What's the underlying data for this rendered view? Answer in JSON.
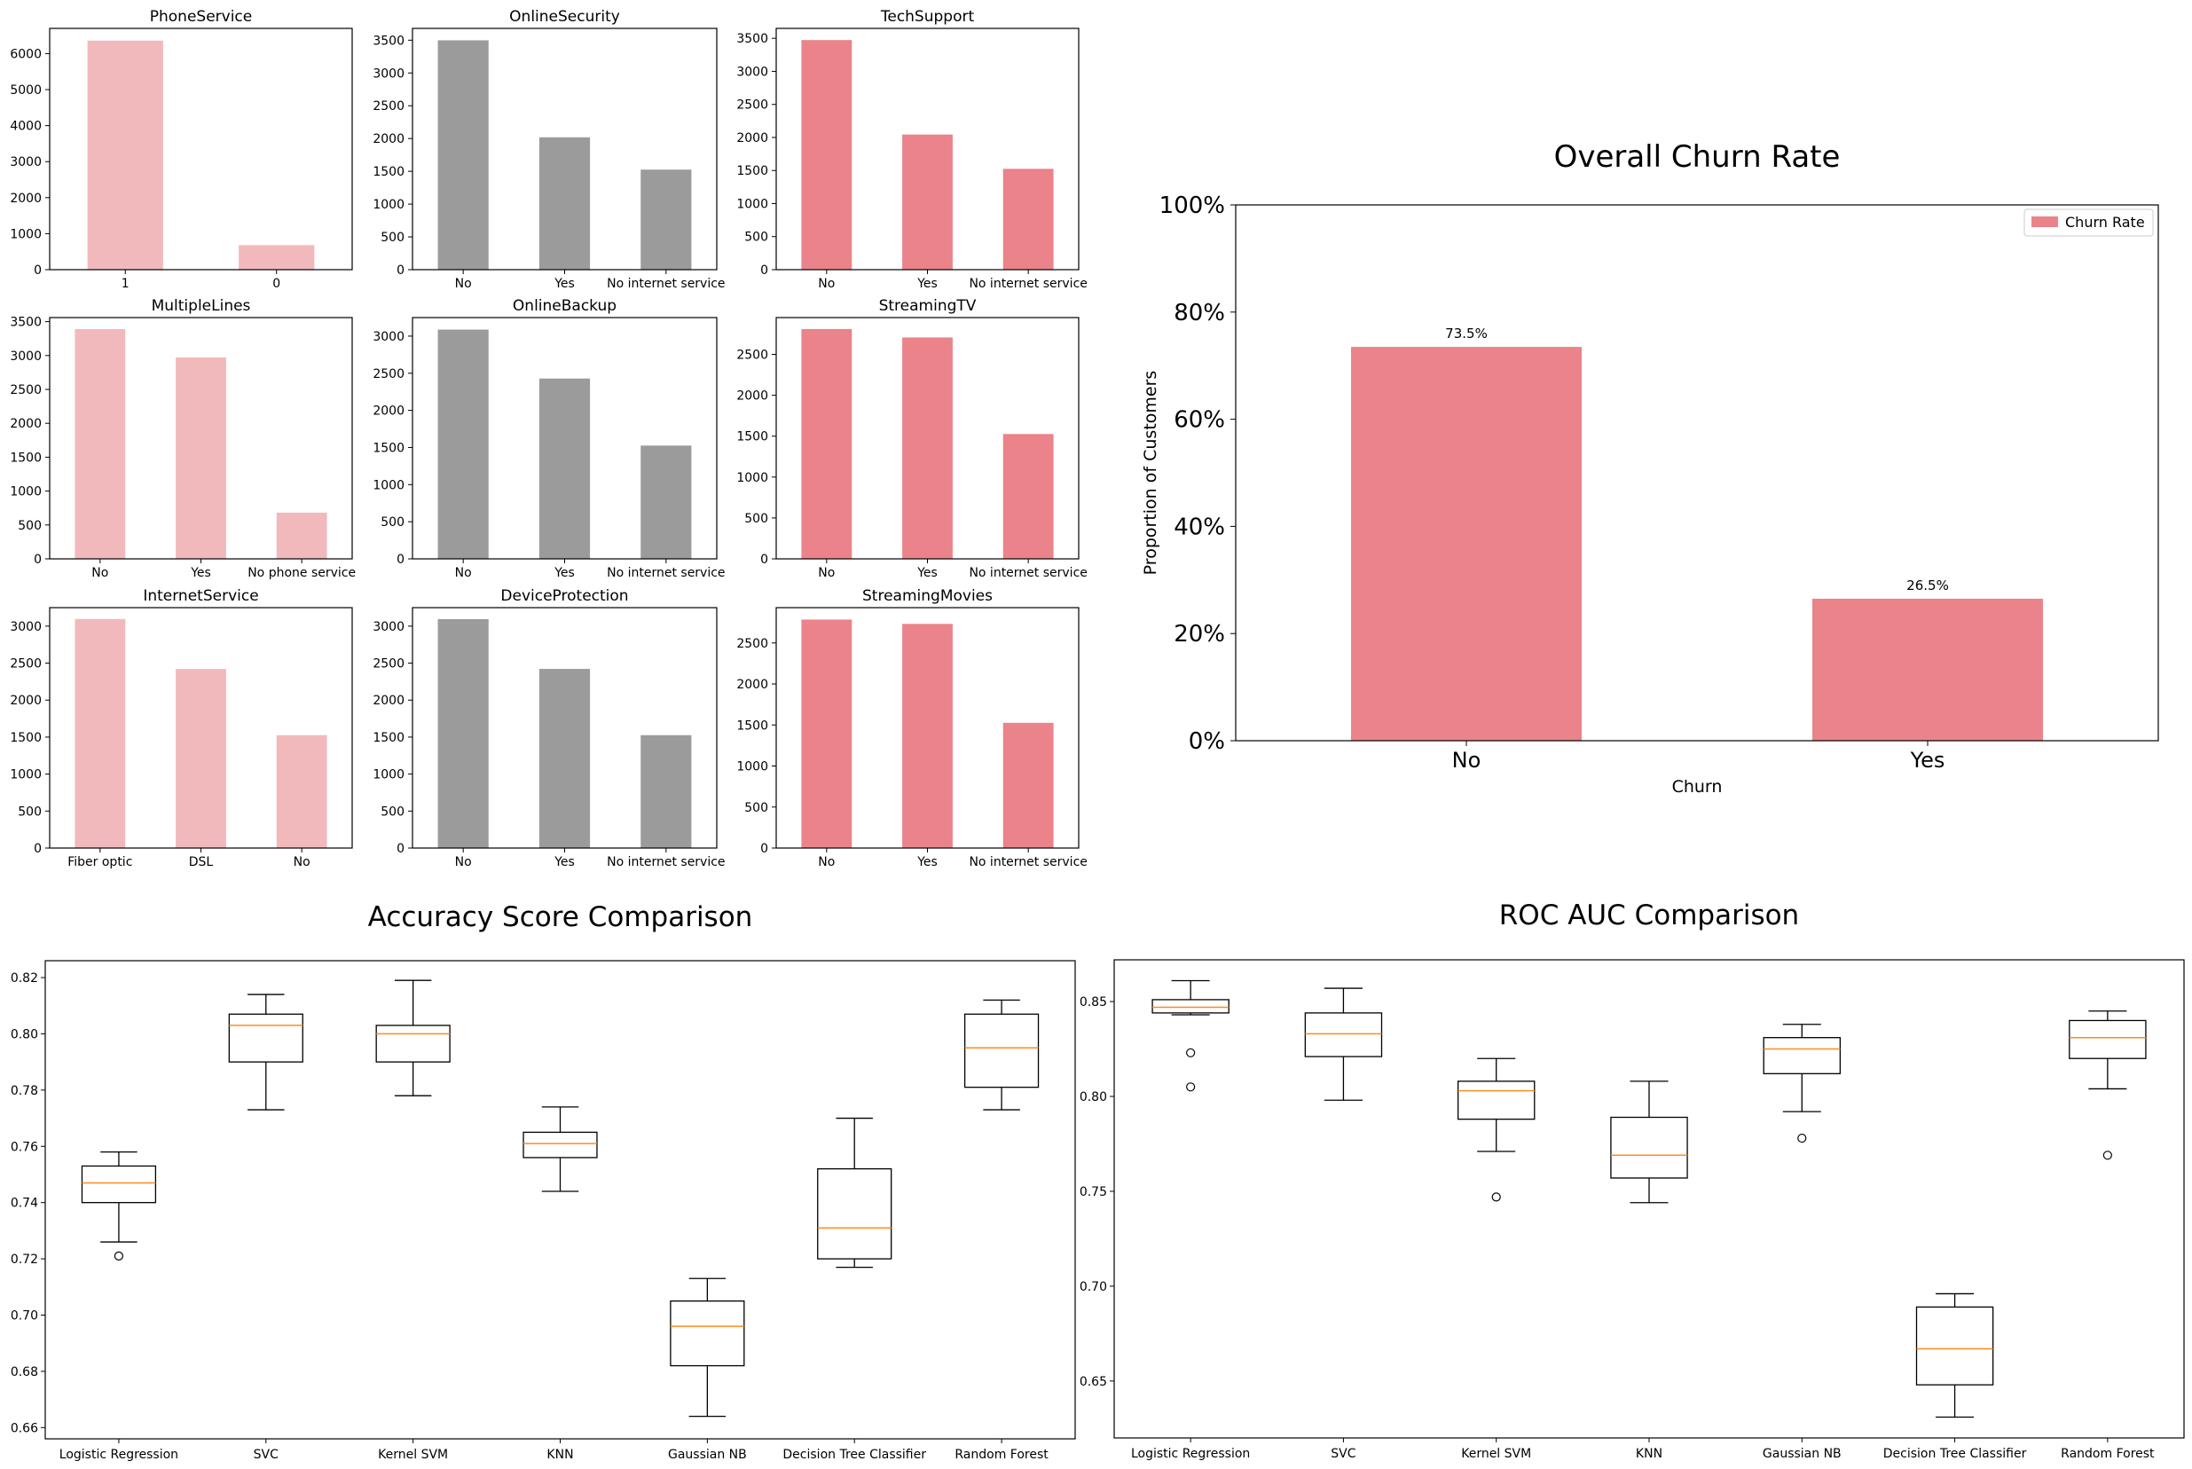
{
  "chart_data": [
    {
      "type": "bar",
      "title": "PhoneService",
      "categories": [
        "1",
        "0"
      ],
      "values": [
        6361,
        682
      ],
      "ylim": [
        0,
        6700
      ],
      "yticks": [
        0,
        1000,
        2000,
        3000,
        4000,
        5000,
        6000
      ],
      "color": "#f2b9bc"
    },
    {
      "type": "bar",
      "title": "OnlineSecurity",
      "categories": [
        "No",
        "Yes",
        "No internet service"
      ],
      "values": [
        3498,
        2019,
        1526
      ],
      "ylim": [
        0,
        3680
      ],
      "yticks": [
        0,
        500,
        1000,
        1500,
        2000,
        2500,
        3000,
        3500
      ],
      "color": "#9b9b9b"
    },
    {
      "type": "bar",
      "title": "TechSupport",
      "categories": [
        "No",
        "Yes",
        "No internet service"
      ],
      "values": [
        3473,
        2044,
        1526
      ],
      "ylim": [
        0,
        3650
      ],
      "yticks": [
        0,
        500,
        1000,
        1500,
        2000,
        2500,
        3000,
        3500
      ],
      "color": "#eb838a"
    },
    {
      "type": "bar",
      "title": "MultipleLines",
      "categories": [
        "No",
        "Yes",
        "No phone service"
      ],
      "values": [
        3390,
        2971,
        682
      ],
      "ylim": [
        0,
        3560
      ],
      "yticks": [
        0,
        500,
        1000,
        1500,
        2000,
        2500,
        3000,
        3500
      ],
      "color": "#f2b9bc"
    },
    {
      "type": "bar",
      "title": "OnlineBackup",
      "categories": [
        "No",
        "Yes",
        "No internet service"
      ],
      "values": [
        3088,
        2429,
        1526
      ],
      "ylim": [
        0,
        3250
      ],
      "yticks": [
        0,
        500,
        1000,
        1500,
        2000,
        2500,
        3000
      ],
      "color": "#9b9b9b"
    },
    {
      "type": "bar",
      "title": "StreamingTV",
      "categories": [
        "No",
        "Yes",
        "No internet service"
      ],
      "values": [
        2810,
        2707,
        1526
      ],
      "ylim": [
        0,
        2950
      ],
      "yticks": [
        0,
        500,
        1000,
        1500,
        2000,
        2500
      ],
      "color": "#eb838a"
    },
    {
      "type": "bar",
      "title": "InternetService",
      "categories": [
        "Fiber optic",
        "DSL",
        "No"
      ],
      "values": [
        3096,
        2421,
        1526
      ],
      "ylim": [
        0,
        3250
      ],
      "yticks": [
        0,
        500,
        1000,
        1500,
        2000,
        2500,
        3000
      ],
      "color": "#f2b9bc"
    },
    {
      "type": "bar",
      "title": "DeviceProtection",
      "categories": [
        "No",
        "Yes",
        "No internet service"
      ],
      "values": [
        3095,
        2422,
        1526
      ],
      "ylim": [
        0,
        3250
      ],
      "yticks": [
        0,
        500,
        1000,
        1500,
        2000,
        2500,
        3000
      ],
      "color": "#9b9b9b"
    },
    {
      "type": "bar",
      "title": "StreamingMovies",
      "categories": [
        "No",
        "Yes",
        "No internet service"
      ],
      "values": [
        2785,
        2732,
        1526
      ],
      "ylim": [
        0,
        2930
      ],
      "yticks": [
        0,
        500,
        1000,
        1500,
        2000,
        2500
      ],
      "color": "#eb838a"
    },
    {
      "type": "bar",
      "title": "Overall Churn Rate",
      "xlabel": "Churn",
      "ylabel": "Proportion of Customers",
      "categories": [
        "No",
        "Yes"
      ],
      "values": [
        0.735,
        0.265
      ],
      "data_labels": [
        "73.5%",
        "26.5%"
      ],
      "ylim": [
        0,
        1
      ],
      "yticks": [
        "0%",
        "20%",
        "40%",
        "60%",
        "80%",
        "100%"
      ],
      "legend": [
        "Churn Rate"
      ],
      "legend_position": "top-right",
      "color": "#eb838a"
    },
    {
      "type": "box",
      "title": "Accuracy Score Comparison",
      "categories": [
        "Logistic Regression",
        "SVC",
        "Kernel SVM",
        "KNN",
        "Gaussian NB",
        "Decision Tree Classifier",
        "Random Forest"
      ],
      "ylim": [
        0.656,
        0.826
      ],
      "yticks": [
        "0.66",
        "0.68",
        "0.70",
        "0.72",
        "0.74",
        "0.76",
        "0.78",
        "0.80",
        "0.82"
      ],
      "boxes": [
        {
          "whislo": 0.726,
          "q1": 0.74,
          "med": 0.747,
          "q3": 0.753,
          "whishi": 0.758,
          "fliers": [
            0.721
          ]
        },
        {
          "whislo": 0.773,
          "q1": 0.79,
          "med": 0.803,
          "q3": 0.807,
          "whishi": 0.814,
          "fliers": []
        },
        {
          "whislo": 0.778,
          "q1": 0.79,
          "med": 0.8,
          "q3": 0.803,
          "whishi": 0.819,
          "fliers": []
        },
        {
          "whislo": 0.744,
          "q1": 0.756,
          "med": 0.761,
          "q3": 0.765,
          "whishi": 0.774,
          "fliers": []
        },
        {
          "whislo": 0.664,
          "q1": 0.682,
          "med": 0.696,
          "q3": 0.705,
          "whishi": 0.713,
          "fliers": []
        },
        {
          "whislo": 0.717,
          "q1": 0.72,
          "med": 0.731,
          "q3": 0.752,
          "whishi": 0.77,
          "fliers": []
        },
        {
          "whislo": 0.773,
          "q1": 0.781,
          "med": 0.795,
          "q3": 0.807,
          "whishi": 0.812,
          "fliers": []
        }
      ]
    },
    {
      "type": "box",
      "title": "ROC AUC Comparison",
      "categories": [
        "Logistic Regression",
        "SVC",
        "Kernel SVM",
        "KNN",
        "Gaussian NB",
        "Decision Tree Classifier",
        "Random Forest"
      ],
      "ylim": [
        0.62,
        0.872
      ],
      "yticks": [
        "0.65",
        "0.70",
        "0.75",
        "0.80",
        "0.85"
      ],
      "boxes": [
        {
          "whislo": 0.843,
          "q1": 0.844,
          "med": 0.847,
          "q3": 0.851,
          "whishi": 0.861,
          "fliers": [
            0.823,
            0.805
          ]
        },
        {
          "whislo": 0.798,
          "q1": 0.821,
          "med": 0.833,
          "q3": 0.844,
          "whishi": 0.857,
          "fliers": []
        },
        {
          "whislo": 0.771,
          "q1": 0.788,
          "med": 0.803,
          "q3": 0.808,
          "whishi": 0.82,
          "fliers": [
            0.747
          ]
        },
        {
          "whislo": 0.744,
          "q1": 0.757,
          "med": 0.769,
          "q3": 0.789,
          "whishi": 0.808,
          "fliers": []
        },
        {
          "whislo": 0.792,
          "q1": 0.812,
          "med": 0.825,
          "q3": 0.831,
          "whishi": 0.838,
          "fliers": [
            0.778
          ]
        },
        {
          "whislo": 0.631,
          "q1": 0.648,
          "med": 0.667,
          "q3": 0.689,
          "whishi": 0.696,
          "fliers": []
        },
        {
          "whislo": 0.804,
          "q1": 0.82,
          "med": 0.831,
          "q3": 0.84,
          "whishi": 0.845,
          "fliers": [
            0.769
          ]
        }
      ]
    }
  ]
}
